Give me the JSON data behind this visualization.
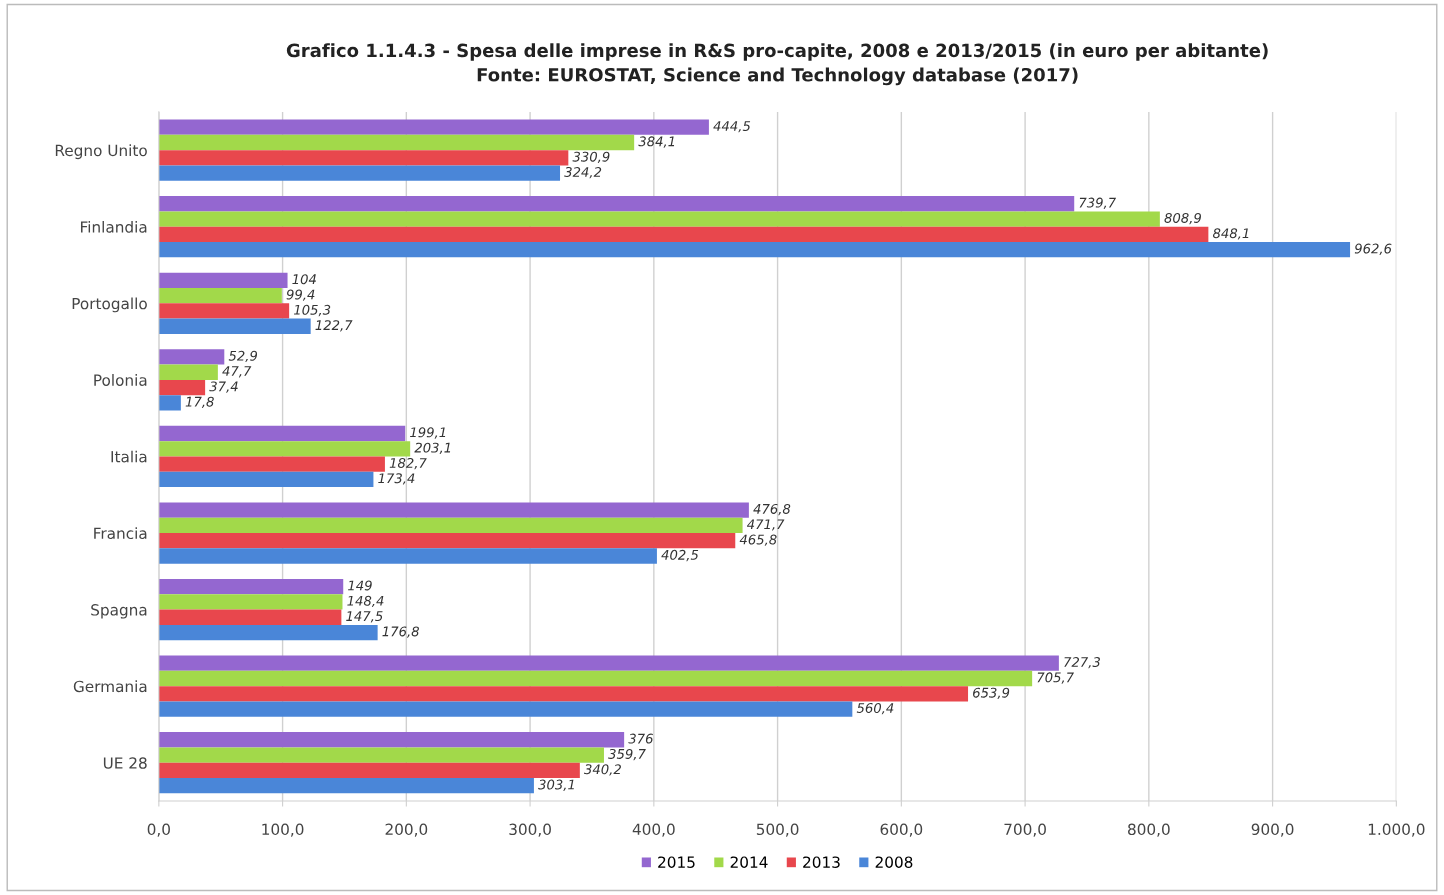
{
  "chart_data": {
    "type": "bar",
    "orientation": "horizontal",
    "title": "Grafico 1.1.4.3 - Spesa delle imprese in R&S pro-capite, 2008 e 2013/2015 (in euro per abitante)\nFonte: EUROSTAT, Science and Technology database (2017)",
    "categories": [
      "Regno Unito",
      "Finlandia",
      "Portogallo",
      "Polonia",
      "Italia",
      "Francia",
      "Spagna",
      "Germania",
      "UE 28"
    ],
    "series": [
      {
        "name": "2015",
        "color": "#9467d0",
        "values": [
          444.5,
          739.7,
          104,
          52.9,
          199.1,
          476.8,
          149,
          727.3,
          376
        ],
        "value_labels": [
          "444,5",
          "739,7",
          "104",
          "52,9",
          "199,1",
          "476,8",
          "149",
          "727,3",
          "376"
        ]
      },
      {
        "name": "2014",
        "color": "#a2d94a",
        "values": [
          384.1,
          808.9,
          99.4,
          47.7,
          203.1,
          471.7,
          148.4,
          705.7,
          359.7
        ],
        "value_labels": [
          "384,1",
          "808,9",
          "99,4",
          "47,7",
          "203,1",
          "471,7",
          "148,4",
          "705,7",
          "359,7"
        ]
      },
      {
        "name": "2013",
        "color": "#e8474d",
        "values": [
          330.9,
          848.1,
          105.3,
          37.4,
          182.7,
          465.8,
          147.5,
          653.9,
          340.2
        ],
        "value_labels": [
          "330,9",
          "848,1",
          "105,3",
          "37,4",
          "182,7",
          "465,8",
          "147,5",
          "653,9",
          "340,2"
        ]
      },
      {
        "name": "2008",
        "color": "#4a86d8",
        "values": [
          324.2,
          962.6,
          122.7,
          17.8,
          173.4,
          402.5,
          176.8,
          560.4,
          303.1
        ],
        "value_labels": [
          "324,2",
          "962,6",
          "122,7",
          "17,8",
          "173,4",
          "402,5",
          "176,8",
          "560,4",
          "303,1"
        ]
      }
    ],
    "xlim": [
      0,
      1000
    ],
    "xticks": [
      {
        "value": 0,
        "label": "0,0"
      },
      {
        "value": 100,
        "label": "100,0"
      },
      {
        "value": 200,
        "label": "200,0"
      },
      {
        "value": 300,
        "label": "300,0"
      },
      {
        "value": 400,
        "label": "400,0"
      },
      {
        "value": 500,
        "label": "500,0"
      },
      {
        "value": 600,
        "label": "600,0"
      },
      {
        "value": 700,
        "label": "700,0"
      },
      {
        "value": 800,
        "label": "800,0"
      },
      {
        "value": 900,
        "label": "900,0"
      },
      {
        "value": 1000,
        "label": "1.000,0"
      }
    ],
    "grid": "x",
    "legend": "bottom"
  }
}
